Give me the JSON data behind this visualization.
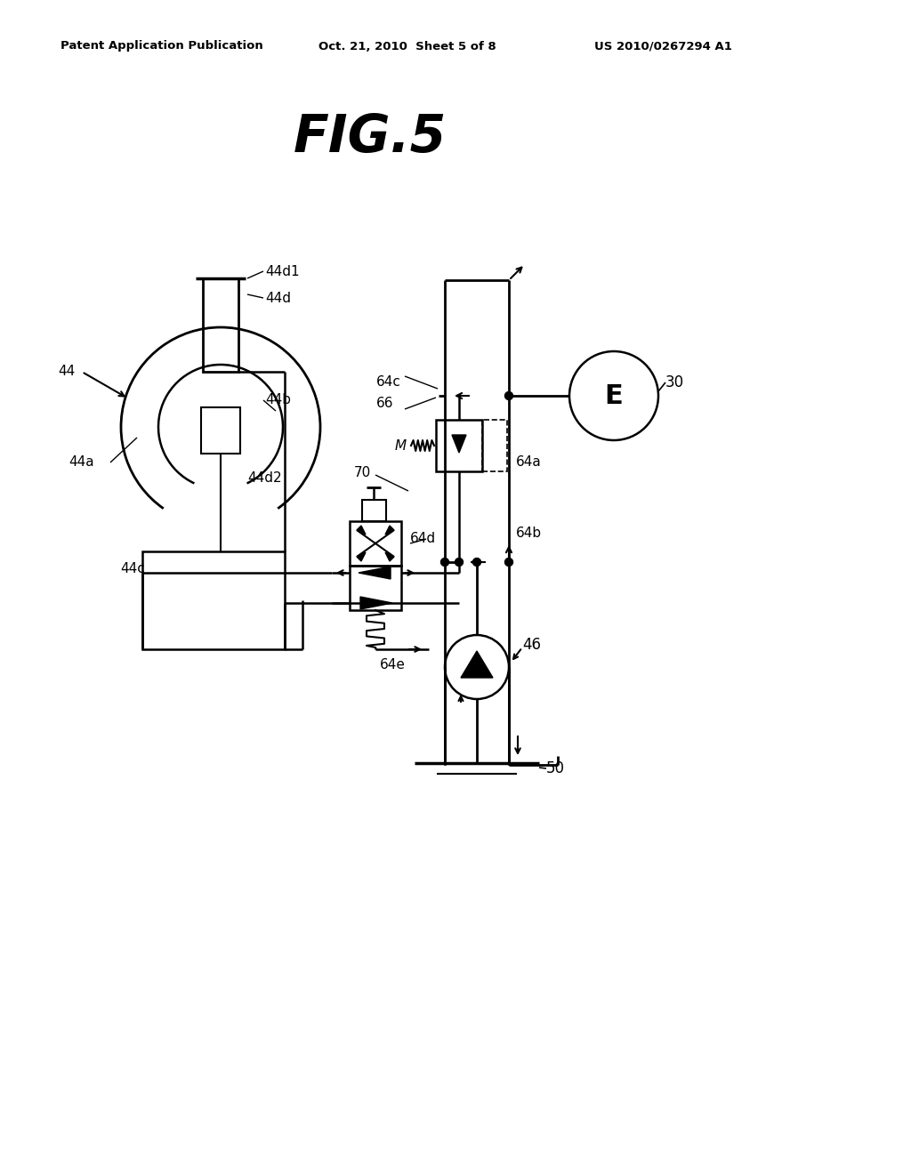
{
  "header_left": "Patent Application Publication",
  "header_center": "Oct. 21, 2010  Sheet 5 of 8",
  "header_right": "US 2010/0267294 A1",
  "fig_title": "FIG.5",
  "bg_color": "#ffffff",
  "lc": "#000000"
}
